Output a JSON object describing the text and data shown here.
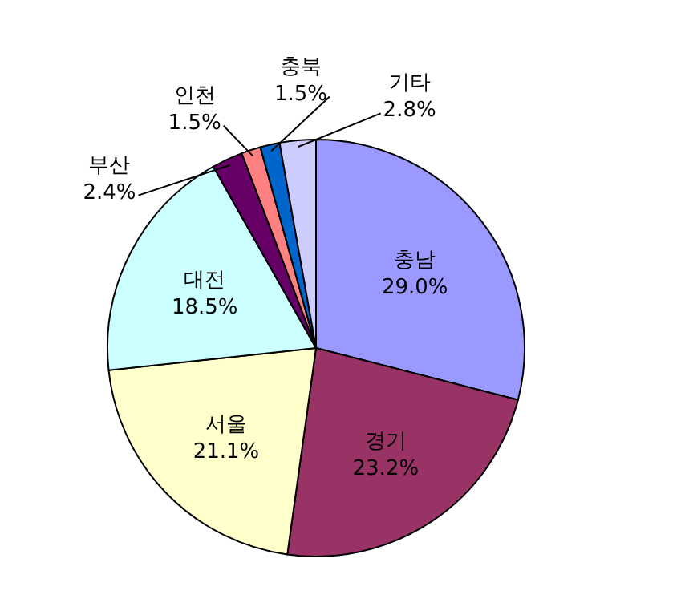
{
  "chart_data": {
    "type": "pie",
    "categories": [
      "충남",
      "경기",
      "서울",
      "대전",
      "부산",
      "인천",
      "충북",
      "기타"
    ],
    "values": [
      29.0,
      23.2,
      21.1,
      18.5,
      2.4,
      1.5,
      1.5,
      2.8
    ],
    "value_labels": [
      "29.0%",
      "23.2%",
      "21.1%",
      "18.5%",
      "2.4%",
      "1.5%",
      "1.5%",
      "2.8%"
    ],
    "colors": [
      "#9999ff",
      "#993366",
      "#ffffcc",
      "#ccffff",
      "#660066",
      "#ff8080",
      "#0066cc",
      "#ccccff"
    ]
  }
}
